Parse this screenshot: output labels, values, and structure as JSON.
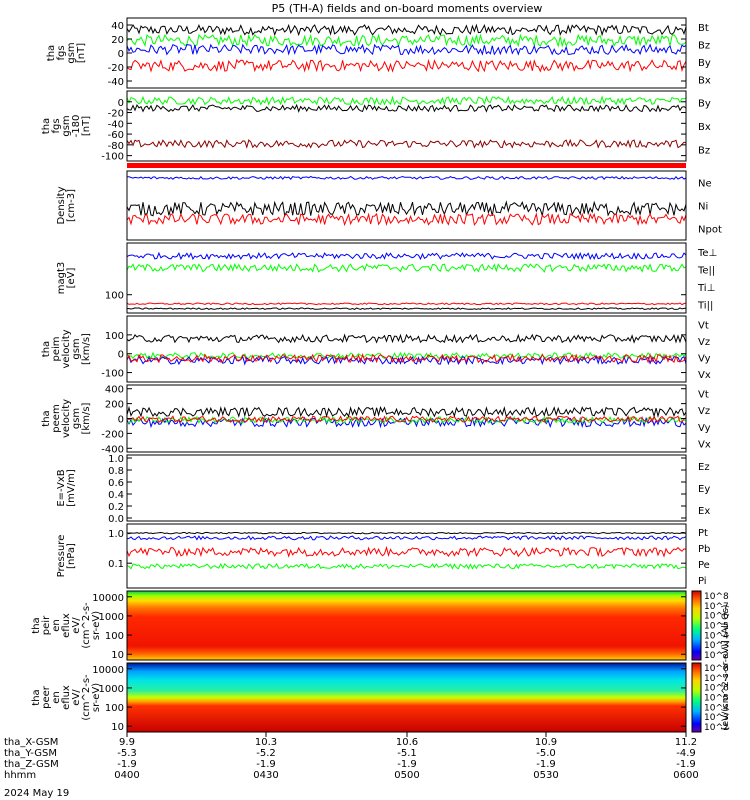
{
  "title": "P5 (TH-A) fields and on-board moments overview",
  "date_label": "2024 May 19",
  "colors": {
    "black": "#000000",
    "red": "#ff0000",
    "green": "#00ff00",
    "blue": "#0000ff",
    "dark_red": "#8b0000"
  },
  "bottom_axis": {
    "rows": [
      {
        "label": "tha_X-GSM",
        "values": [
          "9.9",
          "10.3",
          "10.6",
          "10.9",
          "11.2"
        ]
      },
      {
        "label": "tha_Y-GSM",
        "values": [
          "-5.3",
          "-5.2",
          "-5.1",
          "-5.0",
          "-4.9"
        ]
      },
      {
        "label": "tha_Z-GSM",
        "values": [
          "-1.9",
          "-1.9",
          "-1.9",
          "-1.9",
          "-1.9"
        ]
      },
      {
        "label": "hhmm",
        "values": [
          "0400",
          "0430",
          "0500",
          "0530",
          "0600"
        ]
      }
    ]
  },
  "chart_data": [
    {
      "type": "line",
      "ylabel": [
        "tha",
        "fgs",
        "gsm",
        "[nT]"
      ],
      "ylim": [
        -50,
        50
      ],
      "ticks": [
        "40",
        "20",
        "0",
        "-20",
        "-40"
      ],
      "tick_values": [
        40,
        20,
        0,
        -20,
        -40
      ],
      "legend": [
        {
          "name": "Bt",
          "color": "#000000"
        },
        {
          "name": "Bz",
          "color": "#ff0000"
        },
        {
          "name": "By",
          "color": "#00ff00"
        },
        {
          "name": "Bx",
          "color": "#0000ff"
        }
      ],
      "series": [
        {
          "name": "Bt",
          "color": "#000000",
          "mean": 33,
          "noise": 7
        },
        {
          "name": "By",
          "color": "#00ff00",
          "mean": 18,
          "noise": 8
        },
        {
          "name": "Bx",
          "color": "#0000ff",
          "mean": 5,
          "noise": 7
        },
        {
          "name": "Bz",
          "color": "#ff0000",
          "mean": -18,
          "noise": 8
        }
      ]
    },
    {
      "type": "line",
      "ylabel": [
        "tha",
        "fgs",
        "gsm",
        "-180",
        "[nT]"
      ],
      "ylim": [
        -110,
        20
      ],
      "ticks": [
        "0",
        "-20",
        "-40",
        "-60",
        "-80",
        "-100"
      ],
      "tick_values": [
        0,
        -20,
        -40,
        -60,
        -80,
        -100
      ],
      "legend": [
        {
          "name": "By",
          "color": "#00ff00"
        },
        {
          "name": "Bx",
          "color": "#000000"
        },
        {
          "name": "Bz",
          "color": "#8b0000"
        }
      ],
      "series": [
        {
          "name": "By",
          "color": "#00ff00",
          "mean": 2,
          "noise": 7
        },
        {
          "name": "Bx",
          "color": "#000000",
          "mean": -12,
          "noise": 6
        },
        {
          "name": "Bz",
          "color": "#8b0000",
          "mean": -78,
          "noise": 7
        }
      ]
    },
    {
      "type": "line",
      "ylabel": [
        "Density",
        "[cm-3]"
      ],
      "ylim": [
        0,
        1
      ],
      "ticks": [],
      "tick_values": [],
      "legend": [
        {
          "name": "Ne",
          "color": "#ff0000"
        },
        {
          "name": "Ni",
          "color": "#000000"
        },
        {
          "name": "Npot",
          "color": "#0000ff"
        }
      ],
      "series": [
        {
          "name": "Npot",
          "color": "#0000ff",
          "mean": 0.9,
          "noise": 0.02
        },
        {
          "name": "Ni",
          "color": "#000000",
          "mean": 0.45,
          "noise": 0.1
        },
        {
          "name": "Ne",
          "color": "#ff0000",
          "mean": 0.3,
          "noise": 0.08
        }
      ]
    },
    {
      "type": "line",
      "ylabel": [
        "magt3",
        "[eV]"
      ],
      "ylim": [
        30,
        3000
      ],
      "log": true,
      "ticks": [
        "100"
      ],
      "tick_values": [
        100
      ],
      "legend": [
        {
          "name": "Te⊥",
          "color": "#ff0000"
        },
        {
          "name": "Te||",
          "color": "#000000"
        },
        {
          "name": "Ti⊥",
          "color": "#0000ff"
        },
        {
          "name": "Ti||",
          "color": "#00ff00"
        }
      ],
      "series": [
        {
          "name": "Ti⊥",
          "color": "#0000ff",
          "mean": 1300,
          "noise": 250
        },
        {
          "name": "Ti||",
          "color": "#00ff00",
          "mean": 600,
          "noise": 150
        },
        {
          "name": "Te⊥",
          "color": "#ff0000",
          "mean": 55,
          "noise": 3
        },
        {
          "name": "Te||",
          "color": "#000000",
          "mean": 40,
          "noise": 2
        }
      ]
    },
    {
      "type": "line",
      "ylabel": [
        "tha",
        "peim",
        "velocity",
        "gsm",
        "[km/s]"
      ],
      "ylim": [
        -150,
        200
      ],
      "ticks": [
        "100",
        "0",
        "-100"
      ],
      "tick_values": [
        100,
        0,
        -100
      ],
      "legend": [
        {
          "name": "Vt",
          "color": "#000000"
        },
        {
          "name": "Vz",
          "color": "#ff0000"
        },
        {
          "name": "Vy",
          "color": "#00ff00"
        },
        {
          "name": "Vx",
          "color": "#0000ff"
        }
      ],
      "series": [
        {
          "name": "Vt",
          "color": "#000000",
          "mean": 80,
          "noise": 20
        },
        {
          "name": "Vy",
          "color": "#00ff00",
          "mean": -10,
          "noise": 15
        },
        {
          "name": "Vx",
          "color": "#0000ff",
          "mean": -35,
          "noise": 20
        },
        {
          "name": "Vz",
          "color": "#ff0000",
          "mean": -25,
          "noise": 20
        }
      ]
    },
    {
      "type": "line",
      "ylabel": [
        "tha",
        "peem",
        "velocity",
        "gsm",
        "[km/s]"
      ],
      "ylim": [
        -450,
        450
      ],
      "ticks": [
        "400",
        "200",
        "0",
        "-200",
        "-400"
      ],
      "tick_values": [
        400,
        200,
        0,
        -200,
        -400
      ],
      "legend": [
        {
          "name": "Vt",
          "color": "#000000"
        },
        {
          "name": "Vz",
          "color": "#ff0000"
        },
        {
          "name": "Vy",
          "color": "#00ff00"
        },
        {
          "name": "Vx",
          "color": "#0000ff"
        }
      ],
      "series": [
        {
          "name": "Vx",
          "color": "#0000ff",
          "mean": -50,
          "noise": 60
        },
        {
          "name": "Vy",
          "color": "#00ff00",
          "mean": -20,
          "noise": 40
        },
        {
          "name": "Vz",
          "color": "#ff0000",
          "mean": -10,
          "noise": 40
        },
        {
          "name": "Vt",
          "color": "#000000",
          "mean": 90,
          "noise": 60
        }
      ]
    },
    {
      "type": "line",
      "ylabel": [
        "E=-VxB",
        "[mV/m]"
      ],
      "ylim": [
        -0.05,
        1.05
      ],
      "ticks": [
        "1.0",
        "0.8",
        "0.6",
        "0.4",
        "0.2",
        "0.0"
      ],
      "tick_values": [
        1.0,
        0.8,
        0.6,
        0.4,
        0.2,
        0.0
      ],
      "legend": [
        {
          "name": "Ez",
          "color": "#ff0000"
        },
        {
          "name": "Ey",
          "color": "#00ff00"
        },
        {
          "name": "Ex",
          "color": "#0000ff"
        }
      ],
      "series": []
    },
    {
      "type": "line",
      "ylabel": [
        "Pressure",
        "[nPa]"
      ],
      "ylim": [
        0.015,
        2.0
      ],
      "log": true,
      "ticks": [
        "1.0",
        "0.1"
      ],
      "tick_values": [
        1.0,
        0.1
      ],
      "legend": [
        {
          "name": "Pt",
          "color": "#000000"
        },
        {
          "name": "Pb",
          "color": "#ff0000"
        },
        {
          "name": "Pe",
          "color": "#00ff00"
        },
        {
          "name": "Pi",
          "color": "#0000ff"
        }
      ],
      "series": [
        {
          "name": "Pe",
          "color": "#00ff00",
          "mean": 0.08,
          "noise": 0.015
        },
        {
          "name": "Pb",
          "color": "#ff0000",
          "mean": 0.25,
          "noise": 0.08
        },
        {
          "name": "Pi",
          "color": "#0000ff",
          "mean": 0.7,
          "noise": 0.1
        },
        {
          "name": "Pt",
          "color": "#000000",
          "mean": 1.0,
          "noise": 0.05
        }
      ]
    },
    {
      "type": "heatmap",
      "ylabel": [
        "tha",
        "peir",
        "en",
        "eflux",
        "eV/",
        "(cm^2-s-",
        "sr-eV)"
      ],
      "ylim": [
        5,
        20000
      ],
      "log": true,
      "ticks": [
        "10000",
        "1000",
        "100",
        "10"
      ],
      "tick_values": [
        10000,
        1000,
        100,
        10
      ],
      "colorbar_ticks": [
        "10^8",
        "10^7",
        "10^6",
        "10^5",
        "10^4",
        "10^3",
        "10^2"
      ]
    },
    {
      "type": "heatmap",
      "ylabel": [
        "tha",
        "peer",
        "en",
        "eflux",
        "eV/",
        "(cm^2-s-",
        "sr-eV)"
      ],
      "ylim": [
        5,
        20000
      ],
      "log": true,
      "ticks": [
        "10000",
        "1000",
        "100",
        "10"
      ],
      "tick_values": [
        10000,
        1000,
        100,
        10
      ],
      "colorbar_ticks": [
        "10^8",
        "10^7",
        "10^6",
        "10^5",
        "10^4",
        "10^3",
        "10^2"
      ],
      "colorbar_label": "[eV/(cm^2-s-sr-eV)] (All Qs)"
    }
  ]
}
